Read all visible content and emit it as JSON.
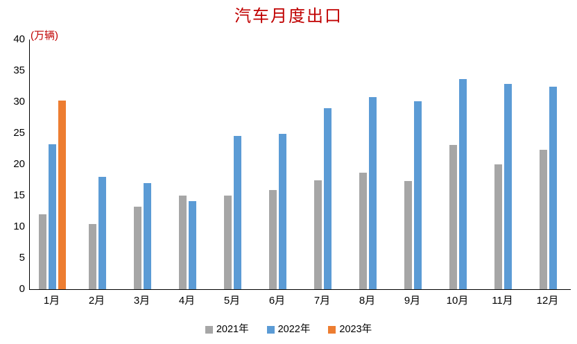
{
  "chart_data": {
    "type": "bar",
    "title": "汽车月度出口",
    "ylabel": "(万辆)",
    "xlabel": "",
    "categories": [
      "1月",
      "2月",
      "3月",
      "4月",
      "5月",
      "6月",
      "7月",
      "8月",
      "9月",
      "10月",
      "11月",
      "12月"
    ],
    "series": [
      {
        "name": "2021年",
        "color": "#a6a6a6",
        "values": [
          12.0,
          10.5,
          13.2,
          15.0,
          15.0,
          15.9,
          17.4,
          18.7,
          17.3,
          23.1,
          20.0,
          22.3
        ]
      },
      {
        "name": "2022年",
        "color": "#5b9bd5",
        "values": [
          23.2,
          18.0,
          17.0,
          14.1,
          24.6,
          24.9,
          29.0,
          30.8,
          30.1,
          33.7,
          32.9,
          32.4
        ]
      },
      {
        "name": "2023年",
        "color": "#ed7d31",
        "values": [
          30.2,
          null,
          null,
          null,
          null,
          null,
          null,
          null,
          null,
          null,
          null,
          null
        ]
      }
    ],
    "ylim": [
      0,
      40
    ],
    "y_tick_interval": 5,
    "y_ticks": [
      0,
      5,
      10,
      15,
      20,
      25,
      30,
      35,
      40
    ],
    "grid": false,
    "legend_position": "bottom",
    "title_color": "#c00000",
    "axis_color": "#000000"
  }
}
